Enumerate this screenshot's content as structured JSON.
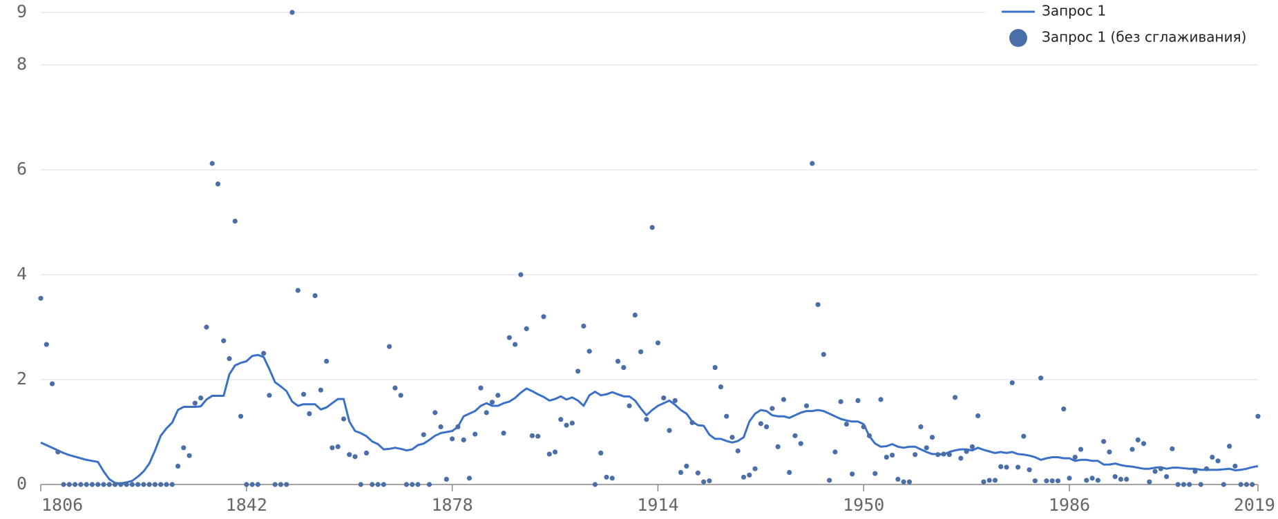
{
  "chart_data": {
    "type": "line",
    "x": [
      1806,
      1807,
      1808,
      1809,
      1810,
      1811,
      1812,
      1813,
      1814,
      1815,
      1816,
      1817,
      1818,
      1819,
      1820,
      1821,
      1822,
      1823,
      1824,
      1825,
      1826,
      1827,
      1828,
      1829,
      1830,
      1831,
      1832,
      1833,
      1834,
      1835,
      1836,
      1837,
      1838,
      1839,
      1840,
      1841,
      1842,
      1843,
      1844,
      1845,
      1846,
      1847,
      1848,
      1849,
      1850,
      1851,
      1852,
      1853,
      1854,
      1855,
      1856,
      1857,
      1858,
      1859,
      1860,
      1861,
      1862,
      1863,
      1864,
      1865,
      1866,
      1867,
      1868,
      1869,
      1870,
      1871,
      1872,
      1873,
      1874,
      1875,
      1876,
      1877,
      1878,
      1879,
      1880,
      1881,
      1882,
      1883,
      1884,
      1885,
      1886,
      1887,
      1888,
      1889,
      1890,
      1891,
      1892,
      1893,
      1894,
      1895,
      1896,
      1897,
      1898,
      1899,
      1900,
      1901,
      1902,
      1903,
      1904,
      1905,
      1906,
      1907,
      1908,
      1909,
      1910,
      1911,
      1912,
      1913,
      1914,
      1915,
      1916,
      1917,
      1918,
      1919,
      1920,
      1921,
      1922,
      1923,
      1924,
      1925,
      1926,
      1927,
      1928,
      1929,
      1930,
      1931,
      1932,
      1933,
      1934,
      1935,
      1936,
      1937,
      1938,
      1939,
      1940,
      1941,
      1942,
      1943,
      1944,
      1945,
      1946,
      1947,
      1948,
      1949,
      1950,
      1951,
      1952,
      1953,
      1954,
      1955,
      1956,
      1957,
      1958,
      1959,
      1960,
      1961,
      1962,
      1963,
      1964,
      1965,
      1966,
      1967,
      1968,
      1969,
      1970,
      1971,
      1972,
      1973,
      1974,
      1975,
      1976,
      1977,
      1978,
      1979,
      1980,
      1981,
      1982,
      1983,
      1984,
      1985,
      1986,
      1987,
      1988,
      1989,
      1990,
      1991,
      1992,
      1993,
      1994,
      1995,
      1996,
      1997,
      1998,
      1999,
      2000,
      2001,
      2002,
      2003,
      2004,
      2005,
      2006,
      2007,
      2008,
      2009,
      2010,
      2011,
      2012,
      2013,
      2014,
      2015,
      2016,
      2017,
      2018,
      2019
    ],
    "series": [
      {
        "name": "Запрос 1",
        "type": "line",
        "color": "#3a70c8",
        "values": [
          0.8,
          0.75,
          0.7,
          0.65,
          0.6,
          0.56,
          0.53,
          0.5,
          0.47,
          0.45,
          0.43,
          0.25,
          0.1,
          0.03,
          0.02,
          0.04,
          0.07,
          0.15,
          0.25,
          0.4,
          0.65,
          0.93,
          1.07,
          1.18,
          1.42,
          1.48,
          1.48,
          1.48,
          1.49,
          1.62,
          1.69,
          1.69,
          1.69,
          2.1,
          2.27,
          2.32,
          2.35,
          2.45,
          2.47,
          2.43,
          2.2,
          1.95,
          1.87,
          1.78,
          1.58,
          1.5,
          1.53,
          1.53,
          1.53,
          1.43,
          1.47,
          1.55,
          1.63,
          1.63,
          1.2,
          1.02,
          0.98,
          0.92,
          0.82,
          0.77,
          0.67,
          0.68,
          0.7,
          0.68,
          0.65,
          0.67,
          0.75,
          0.78,
          0.85,
          0.93,
          0.98,
          1.0,
          1.02,
          1.1,
          1.3,
          1.35,
          1.4,
          1.5,
          1.55,
          1.5,
          1.5,
          1.55,
          1.58,
          1.65,
          1.75,
          1.83,
          1.78,
          1.72,
          1.67,
          1.6,
          1.63,
          1.68,
          1.62,
          1.66,
          1.6,
          1.5,
          1.7,
          1.77,
          1.7,
          1.72,
          1.76,
          1.72,
          1.68,
          1.68,
          1.6,
          1.45,
          1.32,
          1.42,
          1.5,
          1.55,
          1.6,
          1.52,
          1.42,
          1.35,
          1.2,
          1.13,
          1.12,
          0.95,
          0.87,
          0.87,
          0.83,
          0.8,
          0.83,
          0.9,
          1.2,
          1.35,
          1.42,
          1.4,
          1.32,
          1.3,
          1.3,
          1.27,
          1.32,
          1.37,
          1.4,
          1.4,
          1.42,
          1.4,
          1.35,
          1.3,
          1.25,
          1.22,
          1.2,
          1.2,
          1.15,
          0.92,
          0.78,
          0.72,
          0.73,
          0.77,
          0.72,
          0.7,
          0.72,
          0.72,
          0.67,
          0.62,
          0.58,
          0.58,
          0.57,
          0.62,
          0.65,
          0.67,
          0.67,
          0.65,
          0.7,
          0.66,
          0.63,
          0.6,
          0.62,
          0.6,
          0.62,
          0.58,
          0.57,
          0.55,
          0.52,
          0.47,
          0.5,
          0.52,
          0.52,
          0.5,
          0.5,
          0.45,
          0.47,
          0.47,
          0.45,
          0.45,
          0.38,
          0.38,
          0.4,
          0.37,
          0.35,
          0.34,
          0.32,
          0.3,
          0.3,
          0.32,
          0.33,
          0.3,
          0.32,
          0.32,
          0.31,
          0.3,
          0.3,
          0.28,
          0.28,
          0.28,
          0.28,
          0.29,
          0.3,
          0.27,
          0.28,
          0.3,
          0.33,
          0.35
        ]
      },
      {
        "name": "Запрос 1 (без сглаживания)",
        "type": "scatter",
        "color": "#4a6fa8",
        "values": [
          3.55,
          2.67,
          1.92,
          0.62,
          0,
          0,
          0,
          0,
          0,
          0,
          0,
          0,
          0,
          0,
          0,
          0,
          0,
          0,
          0,
          0,
          0,
          0,
          0,
          0,
          0.35,
          0.7,
          0.55,
          1.55,
          1.65,
          3.0,
          6.12,
          5.73,
          2.74,
          2.4,
          5.02,
          1.3,
          0,
          0,
          0,
          2.5,
          1.7,
          0,
          0,
          0,
          9.0,
          3.7,
          1.72,
          1.35,
          3.6,
          1.8,
          2.35,
          0.7,
          0.72,
          1.25,
          0.57,
          0.53,
          0,
          0.6,
          0,
          0,
          0,
          2.63,
          1.84,
          1.7,
          0,
          0,
          0,
          0.95,
          0,
          1.37,
          1.1,
          0.1,
          0.87,
          1.1,
          0.85,
          0.12,
          0.96,
          1.84,
          1.37,
          1.57,
          1.7,
          0.98,
          2.8,
          2.67,
          4.0,
          2.97,
          0.93,
          0.92,
          3.2,
          0.58,
          0.62,
          1.24,
          1.13,
          1.17,
          2.16,
          3.02,
          2.54,
          0,
          0.6,
          0.14,
          0.12,
          2.35,
          2.23,
          1.5,
          3.23,
          2.53,
          1.24,
          4.9,
          2.7,
          1.65,
          1.03,
          1.6,
          0.23,
          0.35,
          1.18,
          0.22,
          0.05,
          0.07,
          2.23,
          1.86,
          1.3,
          0.9,
          0.64,
          0.14,
          0.18,
          0.3,
          1.16,
          1.1,
          1.45,
          0.72,
          1.62,
          0.23,
          0.93,
          0.78,
          1.5,
          6.12,
          3.43,
          2.48,
          0.08,
          0.62,
          1.58,
          1.15,
          0.2,
          1.6,
          1.1,
          0.93,
          0.21,
          1.62,
          0.52,
          0.56,
          0.1,
          0.05,
          0.05,
          0.57,
          1.1,
          0.7,
          0.9,
          0.57,
          0.58,
          0.57,
          1.66,
          0.5,
          0.63,
          0.72,
          1.31,
          0.05,
          0.08,
          0.08,
          0.34,
          0.33,
          1.94,
          0.33,
          0.92,
          0.28,
          0.07,
          2.03,
          0.07,
          0.07,
          0.07,
          1.44,
          0.12,
          0.52,
          0.67,
          0.08,
          0.12,
          0.08,
          0.82,
          0.62,
          0.15,
          0.1,
          0.1,
          0.67,
          0.85,
          0.78,
          0.05,
          0.25,
          0.3,
          0.15,
          0.68,
          0,
          0,
          0,
          0.25,
          0,
          0.3,
          0.52,
          0.45,
          0,
          0.73,
          0.35,
          0,
          0,
          0,
          1.3
        ]
      }
    ],
    "xlim": [
      1806,
      2019
    ],
    "xticks": [
      1806,
      1842,
      1878,
      1914,
      1950,
      1986,
      2019
    ],
    "ylim": [
      0,
      9
    ],
    "yticks": [
      0,
      2,
      4,
      6,
      8,
      9
    ],
    "grid": true,
    "legend": "top-right"
  }
}
